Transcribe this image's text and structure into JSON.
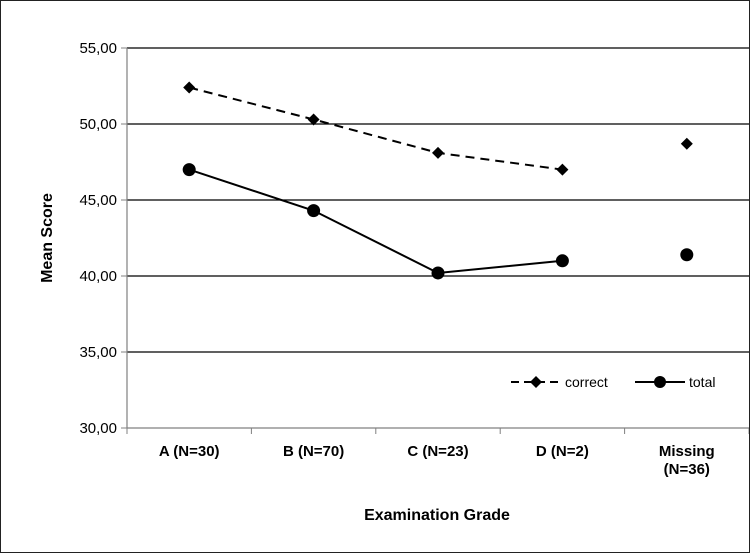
{
  "chart_data": {
    "type": "line",
    "title": "",
    "xlabel": "Examination Grade",
    "ylabel": "Mean Score",
    "categories": [
      [
        "A (N=30)"
      ],
      [
        "B (N=70)"
      ],
      [
        "C (N=23)"
      ],
      [
        "D (N=2)"
      ],
      [
        "Missing",
        "(N=36)"
      ]
    ],
    "ylim": [
      30,
      55
    ],
    "yticks": [
      "30,00",
      "35,00",
      "40,00",
      "45,00",
      "50,00",
      "55,00"
    ],
    "ytick_values": [
      30,
      35,
      40,
      45,
      50,
      55
    ],
    "grid": true,
    "legend_position": "bottom-right",
    "series": [
      {
        "name": "correct",
        "line_style": "dashed",
        "marker": "diamond",
        "values": [
          52.4,
          50.3,
          48.1,
          47.0,
          48.7
        ],
        "connected_points": 4
      },
      {
        "name": "total",
        "line_style": "solid",
        "marker": "circle",
        "values": [
          47.0,
          44.3,
          40.2,
          41.0,
          41.4
        ],
        "connected_points": 4
      }
    ],
    "colors": {
      "line": "#000000",
      "grid": "#000000",
      "axis": "#808080"
    }
  }
}
